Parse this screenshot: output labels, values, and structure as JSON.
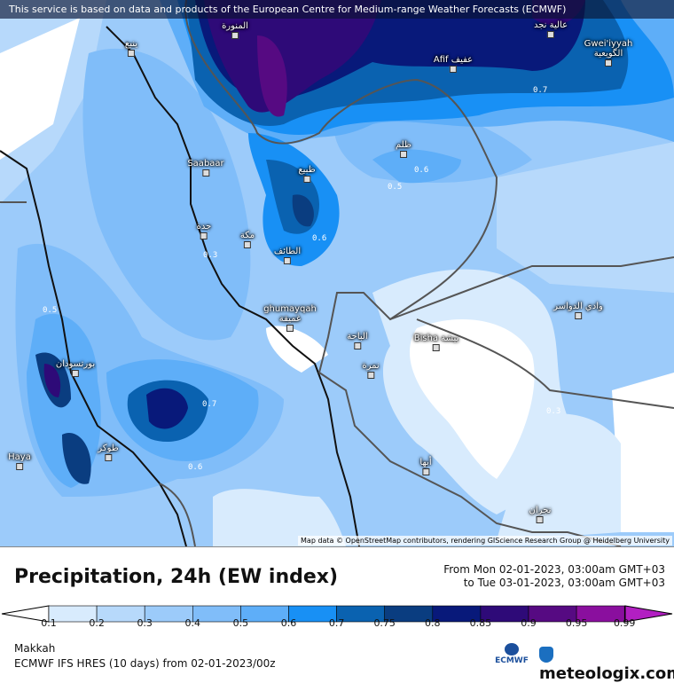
{
  "banner": "This service is based on data and products of the European Centre for Medium-range Weather Forecasts (ECMWF)",
  "attribution": "Map data © OpenStreetMap contributors, rendering GIScience Research Group @ Heidelberg University",
  "cities": [
    {
      "name": "المنورة"
    },
    {
      "name": "ينبع"
    },
    {
      "name": "عالية نجد"
    },
    {
      "name": "Afif عفيف"
    },
    {
      "name": "Gwei'iyyah الگويعية"
    },
    {
      "name": "ظلم"
    },
    {
      "name": "Saabaar"
    },
    {
      "name": "ظبيع"
    },
    {
      "name": "جدة"
    },
    {
      "name": "مكة"
    },
    {
      "name": "الطائف"
    },
    {
      "name": "وادي الدواسر"
    },
    {
      "name": "ghumayqah غميقة"
    },
    {
      "name": "الباحة"
    },
    {
      "name": "Bisha بيشة"
    },
    {
      "name": "نمرة"
    },
    {
      "name": "بورتسودان"
    },
    {
      "name": "طوكر"
    },
    {
      "name": "Haya"
    },
    {
      "name": "أبها"
    },
    {
      "name": "نجران"
    }
  ],
  "contour_labels": [
    "0.7",
    "0.6",
    "0.5",
    "0.6",
    "0.3",
    "0.5",
    "0.7",
    "0.6",
    "0.3"
  ],
  "title": "Precipitation, 24h (EW index)",
  "date_from": "From Mon 02-01-2023, 03:00am GMT+03",
  "date_to": "to Tue 03-01-2023, 03:00am GMT+03",
  "legend": {
    "ticks": [
      "0.1",
      "0.2",
      "0.3",
      "0.4",
      "0.5",
      "0.6",
      "0.7",
      "0.75",
      "0.8",
      "0.85",
      "0.9",
      "0.95",
      "0.99"
    ],
    "colors": [
      "#d8ebfd",
      "#b7d9fb",
      "#9ccbfa",
      "#80bdf9",
      "#5eaef8",
      "#1890f5",
      "#0a62b0",
      "#0a3d80",
      "#08197a",
      "#2e0a78",
      "#560a82",
      "#8a0f9e",
      "#b21fc2"
    ]
  },
  "location": "Makkah",
  "model": "ECMWF IFS HRES (10 days) from  02-01-2023/00z",
  "ecmwf_logo": "ECMWF",
  "brand": "meteologix.com"
}
